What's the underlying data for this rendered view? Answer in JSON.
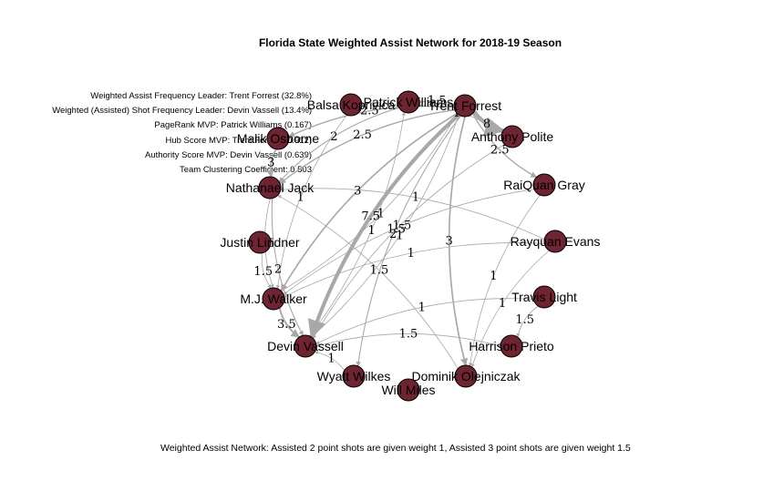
{
  "title": "Florida State Weighted Assist Network for 2018-19 Season",
  "stats": [
    "Weighted Assist Frequency Leader: Trent Forrest (32.8%)",
    "Weighted (Assisted) Shot Frequency Leader: Devin Vassell (13.4%)",
    "PageRank MVP: Patrick Williams (0.167)",
    "Hub Score MVP: Trent Forrest (0.912)",
    "Authority Score MVP: Devin Vassell (0.639)",
    "Team Clustering Coefficient: 0.503"
  ],
  "caption": "Weighted Assist Network: Assisted 2 point shots are given weight 1, Assisted 3 point shots are given weight 1.5",
  "colors": {
    "node": "#6e2431",
    "edge": "#a8a8a8"
  },
  "nodes": [
    {
      "id": "pw",
      "label": "Patrick Williams"
    },
    {
      "id": "tf",
      "label": "Trent Forrest"
    },
    {
      "id": "bk",
      "label": "Balsa Koprivica"
    },
    {
      "id": "ap",
      "label": "Anthony Polite"
    },
    {
      "id": "mo",
      "label": "Malik Osborne"
    },
    {
      "id": "rg",
      "label": "RaiQuan Gray"
    },
    {
      "id": "nj",
      "label": "Nathanael Jack"
    },
    {
      "id": "re",
      "label": "Rayquan Evans"
    },
    {
      "id": "jl",
      "label": "Justin Lindner"
    },
    {
      "id": "tl",
      "label": "Travis Light"
    },
    {
      "id": "mw",
      "label": "M.J. Walker"
    },
    {
      "id": "hp",
      "label": "Harrison Prieto"
    },
    {
      "id": "dv",
      "label": "Devin Vassell"
    },
    {
      "id": "do",
      "label": "Dominik Olejniczak"
    },
    {
      "id": "ww",
      "label": "Wyatt Wilkes"
    },
    {
      "id": "wm",
      "label": "Will Miles"
    }
  ],
  "edges": [
    {
      "from": "tf",
      "to": "dv",
      "weight": "7.5"
    },
    {
      "from": "tf",
      "to": "mw",
      "weight": "3"
    },
    {
      "from": "tf",
      "to": "nj",
      "weight": "2.5"
    },
    {
      "from": "tf",
      "to": "rg",
      "weight": "2.5"
    },
    {
      "from": "tf",
      "to": "ap",
      "weight": "8"
    },
    {
      "from": "tf",
      "to": "mo",
      "weight": "2.5"
    },
    {
      "from": "tf",
      "to": "pw",
      "weight": "1.5"
    },
    {
      "from": "tf",
      "to": "do",
      "weight": "3"
    },
    {
      "from": "tf",
      "to": "ww",
      "weight": "2"
    },
    {
      "from": "mw",
      "to": "dv",
      "weight": "3.5"
    },
    {
      "from": "nj",
      "to": "dv",
      "weight": "2"
    },
    {
      "from": "nj",
      "to": "mw",
      "weight": "1.5"
    },
    {
      "from": "mo",
      "to": "nj",
      "weight": "3"
    },
    {
      "from": "pw",
      "to": "nj",
      "weight": "2"
    },
    {
      "from": "bk",
      "to": "mw",
      "weight": "1"
    },
    {
      "from": "ap",
      "to": "dv",
      "weight": "1.5"
    },
    {
      "from": "ap",
      "to": "pw",
      "weight": "1.5"
    },
    {
      "from": "rg",
      "to": "mw",
      "weight": "1.5"
    },
    {
      "from": "rg",
      "to": "do",
      "weight": "1"
    },
    {
      "from": "re",
      "to": "nj",
      "weight": "1"
    },
    {
      "from": "re",
      "to": "mw",
      "weight": "1"
    },
    {
      "from": "re",
      "to": "do",
      "weight": "1"
    },
    {
      "from": "tl",
      "to": "hp",
      "weight": "1.5"
    },
    {
      "from": "tl",
      "to": "dv",
      "weight": "1"
    },
    {
      "from": "jl",
      "to": "mw",
      "weight": "1.5"
    },
    {
      "from": "hp",
      "to": "dv",
      "weight": "1.5"
    },
    {
      "from": "ww",
      "to": "dv",
      "weight": "1"
    },
    {
      "from": "dv",
      "to": "tf",
      "weight": "1"
    },
    {
      "from": "mw",
      "to": "tf",
      "weight": "1"
    },
    {
      "from": "do",
      "to": "nj",
      "weight": "1.5"
    },
    {
      "from": "dv",
      "to": "pw",
      "weight": "1"
    }
  ]
}
